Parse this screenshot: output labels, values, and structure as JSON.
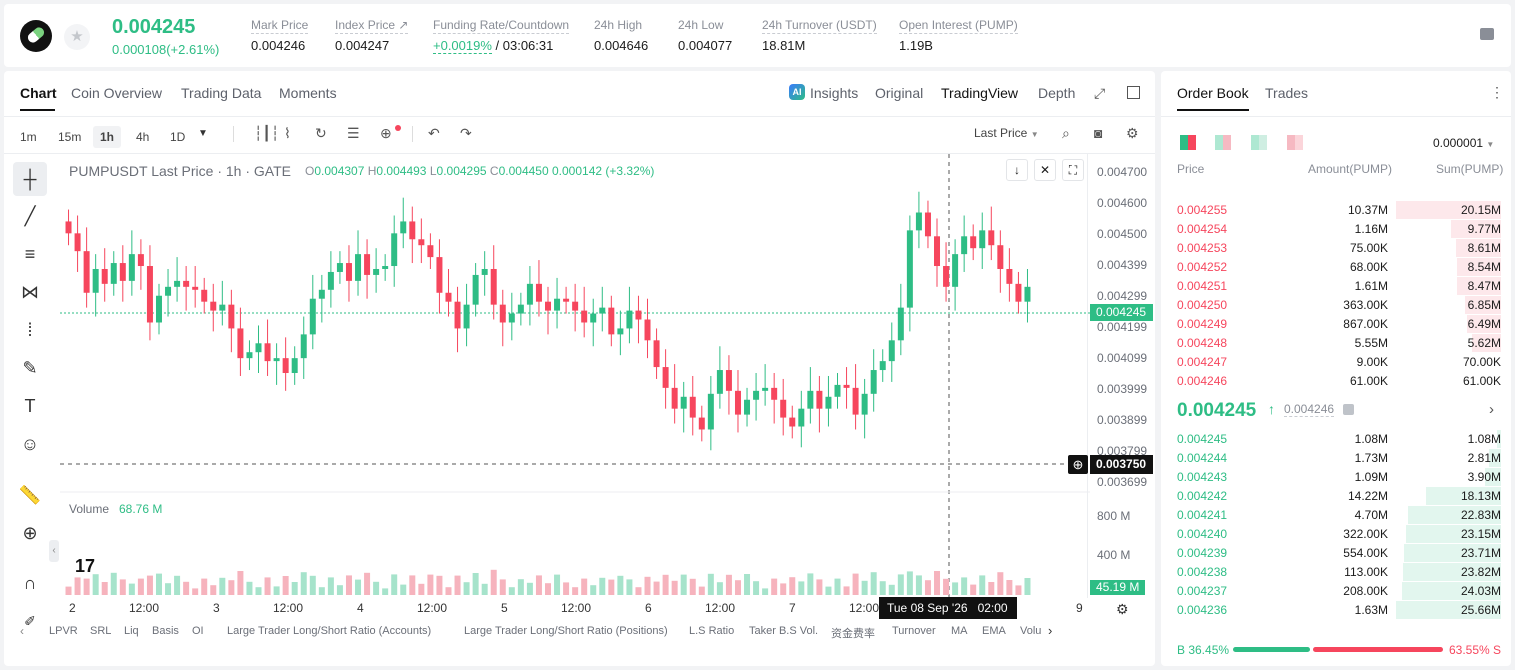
{
  "ticker": {
    "price": "0.004245",
    "change": "0.000108(+2.61%)",
    "stats": [
      {
        "label": "Mark Price",
        "value": "0.004246"
      },
      {
        "label": "Index Price ↗",
        "value": "0.004247"
      },
      {
        "label": "Funding Rate/Countdown",
        "value_rate": "+0.0019%",
        "value_cd": " / 03:06:31"
      },
      {
        "label": "24h High",
        "value": "0.004646"
      },
      {
        "label": "24h Low",
        "value": "0.004077"
      },
      {
        "label": "24h Turnover (USDT)",
        "value": "18.81M"
      },
      {
        "label": "Open Interest (PUMP)",
        "value": "1.19B"
      }
    ]
  },
  "main_tabs": [
    "Chart",
    "Coin Overview",
    "Trading Data",
    "Moments"
  ],
  "view_tabs": [
    "Insights",
    "Original",
    "TradingView",
    "Depth"
  ],
  "timeframes": [
    "1m",
    "15m",
    "1h",
    "4h",
    "1D"
  ],
  "price_source": "Last Price",
  "legend": {
    "symbol": "PUMPUSDT Last Price · 1h · GATE",
    "o_lbl": "O",
    "o": "0.004307",
    "h_lbl": "H",
    "h": "0.004493",
    "l_lbl": "L",
    "l": "0.004295",
    "c_lbl": "C",
    "c": "0.004450",
    "chg": "0.000142 (+3.32%)"
  },
  "volume": {
    "label": "Volume",
    "value": "68.76 M",
    "last": "45.19 M"
  },
  "y_axis": [
    "0.004700",
    "0.004600",
    "0.004500",
    "0.004399",
    "0.004299",
    "0.004199",
    "0.004099",
    "0.003999",
    "0.003899",
    "0.003799",
    "0.003699"
  ],
  "vol_axis": [
    "800 M",
    "400 M"
  ],
  "current_price_tag": "0.004245",
  "crosshair_price": "0.003750",
  "crosshair_time": "Tue 08 Sep '26   02:00",
  "x_axis": [
    "2",
    "12:00",
    "3",
    "12:00",
    "4",
    "12:00",
    "5",
    "12:00",
    "6",
    "12:00",
    "7",
    "12:00",
    "9"
  ],
  "indicators": [
    "LPVR",
    "SRL",
    "Liq",
    "Basis",
    "OI",
    "Large Trader Long/Short Ratio (Accounts)",
    "Large Trader Long/Short Ratio (Positions)",
    "L.S Ratio",
    "Taker B.S Vol.",
    "资金费率",
    "Turnover",
    "MA",
    "EMA",
    "Volu"
  ],
  "orderbook": {
    "tabs": [
      "Order Book",
      "Trades"
    ],
    "precision": "0.000001",
    "headers": [
      "Price",
      "Amount(PUMP)",
      "Sum(PUMP)"
    ],
    "asks": [
      [
        "0.004255",
        "10.37M",
        "20.15M"
      ],
      [
        "0.004254",
        "1.16M",
        "9.77M"
      ],
      [
        "0.004253",
        "75.00K",
        "8.61M"
      ],
      [
        "0.004252",
        "68.00K",
        "8.54M"
      ],
      [
        "0.004251",
        "1.61M",
        "8.47M"
      ],
      [
        "0.004250",
        "363.00K",
        "6.85M"
      ],
      [
        "0.004249",
        "867.00K",
        "6.49M"
      ],
      [
        "0.004248",
        "5.55M",
        "5.62M"
      ],
      [
        "0.004247",
        "9.00K",
        "70.00K"
      ],
      [
        "0.004246",
        "61.00K",
        "61.00K"
      ]
    ],
    "ask_depth": [
      1.0,
      0.48,
      0.43,
      0.42,
      0.42,
      0.34,
      0.32,
      0.28,
      0.0,
      0.0
    ],
    "mid_price": "0.004245",
    "mid_mark": "0.004246",
    "bids": [
      [
        "0.004245",
        "1.08M",
        "1.08M"
      ],
      [
        "0.004244",
        "1.73M",
        "2.81M"
      ],
      [
        "0.004243",
        "1.09M",
        "3.90M"
      ],
      [
        "0.004242",
        "14.22M",
        "18.13M"
      ],
      [
        "0.004241",
        "4.70M",
        "22.83M"
      ],
      [
        "0.004240",
        "322.00K",
        "23.15M"
      ],
      [
        "0.004239",
        "554.00K",
        "23.71M"
      ],
      [
        "0.004238",
        "113.00K",
        "23.82M"
      ],
      [
        "0.004237",
        "208.00K",
        "24.03M"
      ],
      [
        "0.004236",
        "1.63M",
        "25.66M"
      ]
    ],
    "bid_depth": [
      0.04,
      0.11,
      0.15,
      0.71,
      0.89,
      0.9,
      0.92,
      0.93,
      0.94,
      1.0
    ],
    "buy_ratio": "B 36.45%",
    "sell_ratio": "63.55% S",
    "buy_fraction": 0.3645
  },
  "chart_data": {
    "type": "candlestick",
    "title": "PUMPUSDT Last Price · 1h · GATE",
    "ylim": [
      0.00365,
      0.00472
    ],
    "closes": [
      0.00448,
      0.00442,
      0.00428,
      0.00436,
      0.00431,
      0.00438,
      0.00432,
      0.00441,
      0.00437,
      0.00418,
      0.00427,
      0.0043,
      0.00432,
      0.0043,
      0.00429,
      0.00425,
      0.00422,
      0.00424,
      0.00416,
      0.00406,
      0.00408,
      0.00411,
      0.00405,
      0.00406,
      0.00401,
      0.00406,
      0.00414,
      0.00426,
      0.00429,
      0.00435,
      0.00438,
      0.00432,
      0.00441,
      0.00434,
      0.00436,
      0.00437,
      0.00448,
      0.00452,
      0.00446,
      0.00444,
      0.0044,
      0.00428,
      0.00425,
      0.00416,
      0.00424,
      0.00434,
      0.00436,
      0.00424,
      0.00418,
      0.00421,
      0.00424,
      0.00431,
      0.00425,
      0.00422,
      0.00426,
      0.00425,
      0.00422,
      0.00418,
      0.00421,
      0.00423,
      0.00414,
      0.00416,
      0.00422,
      0.00419,
      0.00412,
      0.00403,
      0.00396,
      0.00389,
      0.00393,
      0.00386,
      0.00382,
      0.00394,
      0.00402,
      0.00395,
      0.00387,
      0.00392,
      0.00395,
      0.00396,
      0.00392,
      0.00386,
      0.00383,
      0.00389,
      0.00395,
      0.00389,
      0.00393,
      0.00397,
      0.00396,
      0.00387,
      0.00394,
      0.00402,
      0.00405,
      0.00412,
      0.00423,
      0.00449,
      0.00455,
      0.00447,
      0.00437,
      0.0043,
      0.00441,
      0.00447,
      0.00443,
      0.00449,
      0.00444,
      0.00436,
      0.00431,
      0.00425,
      0.0043
    ],
    "vol_note": "volume bars in millions, last 45.19"
  }
}
